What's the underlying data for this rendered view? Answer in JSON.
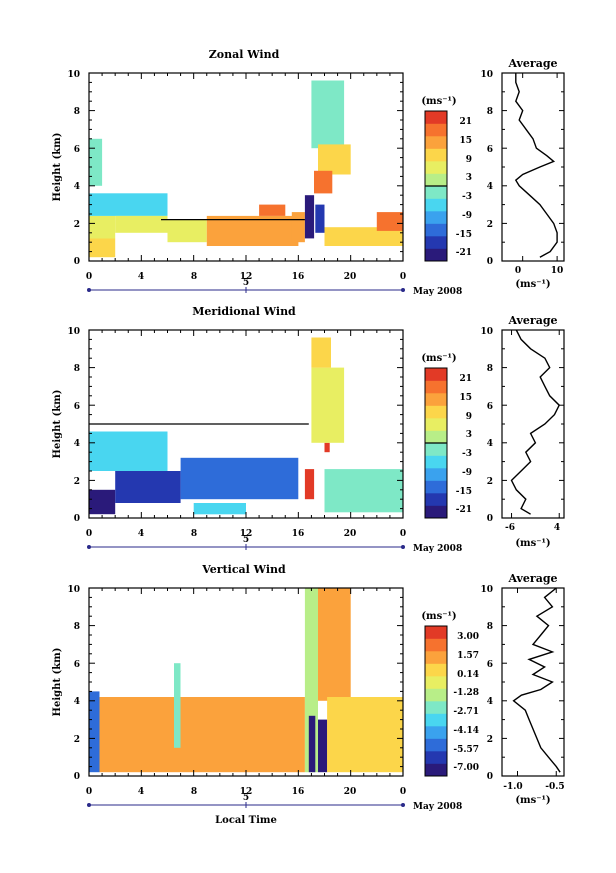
{
  "colors": {
    "scale": [
      "#2a1a7a",
      "#2438b0",
      "#2e6cd9",
      "#3aa2ee",
      "#49d6f0",
      "#7ee8c6",
      "#b8ee88",
      "#e8ee62",
      "#fcd64a",
      "#fba23c",
      "#f6722e",
      "#e23a26"
    ],
    "line": "#000000"
  },
  "panels": [
    {
      "title": "Zonal Wind",
      "ylabel": "Height (km)",
      "yticks": [
        "0",
        "2",
        "4",
        "6",
        "8",
        "10"
      ],
      "xticks": [
        "0",
        "4",
        "8",
        "12",
        "16",
        "20",
        "0"
      ],
      "day_label": "5",
      "date_label": "May 2008",
      "cb_unit": "(ms⁻¹)",
      "cb_ticks": [
        "21",
        "15",
        "9",
        "3",
        "-3",
        "-9",
        "-15",
        "-21"
      ],
      "avg_title": "Average",
      "avg_xticks": [
        "0",
        "10"
      ],
      "avg_xlabel": "(ms⁻¹)"
    },
    {
      "title": "Meridional Wind",
      "ylabel": "Height (km)",
      "yticks": [
        "0",
        "2",
        "4",
        "6",
        "8",
        "10"
      ],
      "xticks": [
        "0",
        "4",
        "8",
        "12",
        "16",
        "20",
        "0"
      ],
      "day_label": "5",
      "date_label": "May 2008",
      "cb_unit": "(ms⁻¹)",
      "cb_ticks": [
        "21",
        "15",
        "9",
        "3",
        "-3",
        "-9",
        "-15",
        "-21"
      ],
      "avg_title": "Average",
      "avg_xticks": [
        "-6",
        "4"
      ],
      "avg_xlabel": "(ms⁻¹)"
    },
    {
      "title": "Vertical Wind",
      "ylabel": "Height (km)",
      "yticks": [
        "0",
        "2",
        "4",
        "6",
        "8",
        "10"
      ],
      "xticks": [
        "0",
        "4",
        "8",
        "12",
        "16",
        "20",
        "0"
      ],
      "day_label": "5",
      "date_label": "May 2008",
      "cb_unit": "(ms⁻¹)",
      "cb_ticks": [
        "3.00",
        "1.57",
        "0.14",
        "-1.28",
        "-2.71",
        "-4.14",
        "-5.57",
        "-7.00"
      ],
      "avg_title": "Average",
      "avg_xticks": [
        "-1.0",
        "-0.5"
      ],
      "avg_xlabel": "(ms⁻¹)",
      "xlabel": "Local Time"
    }
  ],
  "chart_data": [
    {
      "type": "heatmap",
      "title": "Zonal Wind",
      "xlabel": "",
      "ylabel": "Height (km)",
      "x_unit": "hour (local time)",
      "xlim": [
        0,
        24
      ],
      "ylim": [
        0,
        10
      ],
      "zlim": [
        -21,
        21
      ],
      "colorbar_unit": "ms-1",
      "colorbar_ticks": [
        21,
        15,
        9,
        3,
        -3,
        -9,
        -15,
        -21
      ],
      "cells": [
        {
          "x": [
            0,
            2
          ],
          "y": [
            0.2,
            1.2
          ],
          "v": 9
        },
        {
          "x": [
            0,
            2
          ],
          "y": [
            1.2,
            2.4
          ],
          "v": 6
        },
        {
          "x": [
            0,
            6
          ],
          "y": [
            2.4,
            3.6
          ],
          "v": -4
        },
        {
          "x": [
            2,
            6
          ],
          "y": [
            1.5,
            2.4
          ],
          "v": 5
        },
        {
          "x": [
            6,
            9
          ],
          "y": [
            1.0,
            2.2
          ],
          "v": 6
        },
        {
          "x": [
            9,
            16
          ],
          "y": [
            0.8,
            2.4
          ],
          "v": 13
        },
        {
          "x": [
            13,
            15
          ],
          "y": [
            2.4,
            3.0
          ],
          "v": 15
        },
        {
          "x": [
            15.5,
            16.5
          ],
          "y": [
            1.0,
            2.6
          ],
          "v": 13
        },
        {
          "x": [
            16.5,
            17.2
          ],
          "y": [
            1.2,
            3.5
          ],
          "v": -20
        },
        {
          "x": [
            17.3,
            18.0
          ],
          "y": [
            1.5,
            3.0
          ],
          "v": -17
        },
        {
          "x": [
            17.0,
            19.5
          ],
          "y": [
            6.0,
            9.6
          ],
          "v": -3
        },
        {
          "x": [
            17.5,
            20.0
          ],
          "y": [
            4.6,
            6.2
          ],
          "v": 9
        },
        {
          "x": [
            17.2,
            18.6
          ],
          "y": [
            3.6,
            4.8
          ],
          "v": 15
        },
        {
          "x": [
            18,
            24
          ],
          "y": [
            0.8,
            1.8
          ],
          "v": 8
        },
        {
          "x": [
            22,
            24
          ],
          "y": [
            1.6,
            2.6
          ],
          "v": 14
        },
        {
          "x": [
            0,
            1
          ],
          "y": [
            4.0,
            6.5
          ],
          "v": -2
        }
      ],
      "contour_lines": [
        {
          "x": [
            5.5,
            16.5
          ],
          "y": 2.2
        }
      ],
      "average_profile": {
        "xlabel": "ms-1",
        "xlim": [
          -6,
          12
        ],
        "x_ticks": [
          0,
          10
        ],
        "height_km": [
          0.2,
          0.5,
          1,
          1.5,
          2,
          2.5,
          3,
          3.5,
          4,
          4.3,
          4.6,
          5,
          5.3,
          5.6,
          6,
          6.5,
          7,
          7.5,
          8,
          8.5,
          9,
          9.5,
          10
        ],
        "speed": [
          5,
          8,
          10,
          10,
          9,
          7,
          5,
          2,
          -1,
          -2,
          0,
          5,
          9,
          7,
          4,
          3,
          1,
          -1,
          0,
          -2,
          -1,
          -2,
          -2
        ]
      }
    },
    {
      "type": "heatmap",
      "title": "Meridional Wind",
      "xlabel": "",
      "ylabel": "Height (km)",
      "x_unit": "hour (local time)",
      "xlim": [
        0,
        24
      ],
      "ylim": [
        0,
        10
      ],
      "zlim": [
        -21,
        21
      ],
      "colorbar_unit": "ms-1",
      "colorbar_ticks": [
        21,
        15,
        9,
        3,
        -3,
        -9,
        -15,
        -21
      ],
      "cells": [
        {
          "x": [
            0,
            2
          ],
          "y": [
            0.2,
            1.5
          ],
          "v": -18
        },
        {
          "x": [
            0,
            6
          ],
          "y": [
            2.5,
            4.6
          ],
          "v": -6
        },
        {
          "x": [
            2,
            7
          ],
          "y": [
            0.8,
            2.5
          ],
          "v": -15
        },
        {
          "x": [
            7,
            16
          ],
          "y": [
            1.0,
            3.2
          ],
          "v": -11
        },
        {
          "x": [
            8,
            12
          ],
          "y": [
            0.2,
            0.8
          ],
          "v": -5
        },
        {
          "x": [
            16.5,
            17.2
          ],
          "y": [
            1.0,
            2.6
          ],
          "v": 19
        },
        {
          "x": [
            18.0,
            18.4
          ],
          "y": [
            3.5,
            4.0
          ],
          "v": 20
        },
        {
          "x": [
            17.0,
            19.5
          ],
          "y": [
            4.0,
            8.0
          ],
          "v": 4
        },
        {
          "x": [
            17.0,
            18.5
          ],
          "y": [
            8.0,
            9.6
          ],
          "v": 7
        },
        {
          "x": [
            18,
            24
          ],
          "y": [
            0.3,
            2.6
          ],
          "v": -3
        }
      ],
      "contour_lines": [
        {
          "x": [
            0,
            16.8
          ],
          "y": 5.0
        }
      ],
      "average_profile": {
        "xlabel": "ms-1",
        "xlim": [
          -8,
          5
        ],
        "x_ticks": [
          -6,
          4
        ],
        "height_km": [
          0.2,
          0.5,
          1,
          1.5,
          2,
          2.5,
          3,
          3.5,
          4,
          4.5,
          5,
          5.5,
          6,
          6.5,
          7,
          7.5,
          8,
          8.5,
          9,
          9.5,
          10
        ],
        "speed": [
          -2,
          -4,
          -3,
          -5,
          -6,
          -4,
          -2,
          -3,
          -1,
          -2,
          1,
          3,
          4,
          2,
          1,
          0,
          2,
          1,
          -2,
          -4,
          -5
        ]
      }
    },
    {
      "type": "heatmap",
      "title": "Vertical Wind",
      "xlabel": "Local Time",
      "ylabel": "Height (km)",
      "x_unit": "hour (local time)",
      "xlim": [
        0,
        24
      ],
      "ylim": [
        0,
        10
      ],
      "zlim": [
        -7,
        3
      ],
      "colorbar_unit": "ms-1",
      "colorbar_ticks": [
        3.0,
        1.57,
        0.14,
        -1.28,
        -2.71,
        -4.14,
        -5.57,
        -7.0
      ],
      "cells": [
        {
          "x": [
            0,
            0.8
          ],
          "y": [
            0.2,
            4.5
          ],
          "v": -5
        },
        {
          "x": [
            0.8,
            16.5
          ],
          "y": [
            0.2,
            4.2
          ],
          "v": 0.5
        },
        {
          "x": [
            6.5,
            7.0
          ],
          "y": [
            1.5,
            6.0
          ],
          "v": -2.5
        },
        {
          "x": [
            16.5,
            17.5
          ],
          "y": [
            0.2,
            10.0
          ],
          "v": -1.5
        },
        {
          "x": [
            16.8,
            17.3
          ],
          "y": [
            0.2,
            3.2
          ],
          "v": -6.5
        },
        {
          "x": [
            17.5,
            18.2
          ],
          "y": [
            0.2,
            3.0
          ],
          "v": -6.2
        },
        {
          "x": [
            17.5,
            20.0
          ],
          "y": [
            4.0,
            10.0
          ],
          "v": 0.8
        },
        {
          "x": [
            18.2,
            24
          ],
          "y": [
            0.2,
            4.2
          ],
          "v": 0.4
        }
      ],
      "contour_lines": [],
      "average_profile": {
        "xlabel": "ms-1",
        "xlim": [
          -1.2,
          -0.4
        ],
        "x_ticks": [
          -1.0,
          -0.5
        ],
        "height_km": [
          0.2,
          0.5,
          1,
          1.5,
          2,
          2.5,
          3,
          3.5,
          4,
          4.3,
          4.6,
          5,
          5.4,
          5.8,
          6.2,
          6.6,
          7,
          7.5,
          8,
          8.5,
          9,
          9.5,
          10
        ],
        "speed": [
          -0.45,
          -0.5,
          -0.6,
          -0.7,
          -0.75,
          -0.8,
          -0.85,
          -0.9,
          -1.05,
          -0.95,
          -0.7,
          -0.55,
          -0.8,
          -0.65,
          -0.85,
          -0.55,
          -0.8,
          -0.7,
          -0.6,
          -0.75,
          -0.55,
          -0.65,
          -0.5
        ]
      }
    }
  ]
}
